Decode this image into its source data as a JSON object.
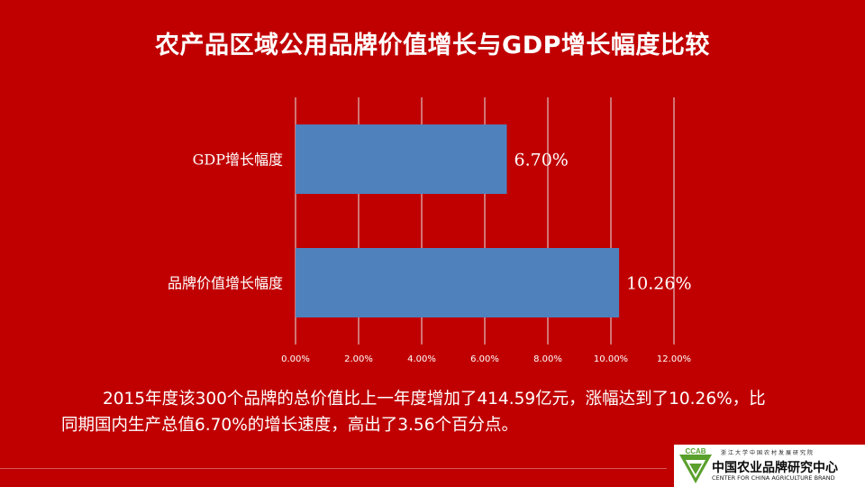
{
  "slide": {
    "title": "农产品区域公用品牌价值增长与GDP增长幅度比较",
    "body_text": "2015年度该300个品牌的总价值比上一年度增加了414.59亿元，涨幅达到了10.26%，比同期国内生产总值6.70%的增长速度，高出了3.56个百分点。"
  },
  "chart_data": {
    "type": "bar",
    "orientation": "horizontal",
    "title": "",
    "categories": [
      "GDP增长幅度",
      "品牌价值增长幅度"
    ],
    "values": [
      6.7,
      10.26
    ],
    "data_labels": [
      "6.70%",
      "10.26%"
    ],
    "xlim": [
      0,
      12
    ],
    "x_ticks": [
      "0.00%",
      "2.00%",
      "4.00%",
      "6.00%",
      "8.00%",
      "10.00%",
      "12.00%"
    ],
    "grid": true,
    "bar_color": "#4f81bd",
    "grid_color": "#e6e6e6"
  },
  "logo": {
    "mark_text": "CCAB",
    "top_text": "浙江大学中国农村发展研究院",
    "cn_text": "中国农业品牌研究中心",
    "en_text": "CENTER FOR CHINA AGRICULTURE BRAND"
  },
  "colors": {
    "background": "#c00000",
    "text": "#ffffff"
  }
}
